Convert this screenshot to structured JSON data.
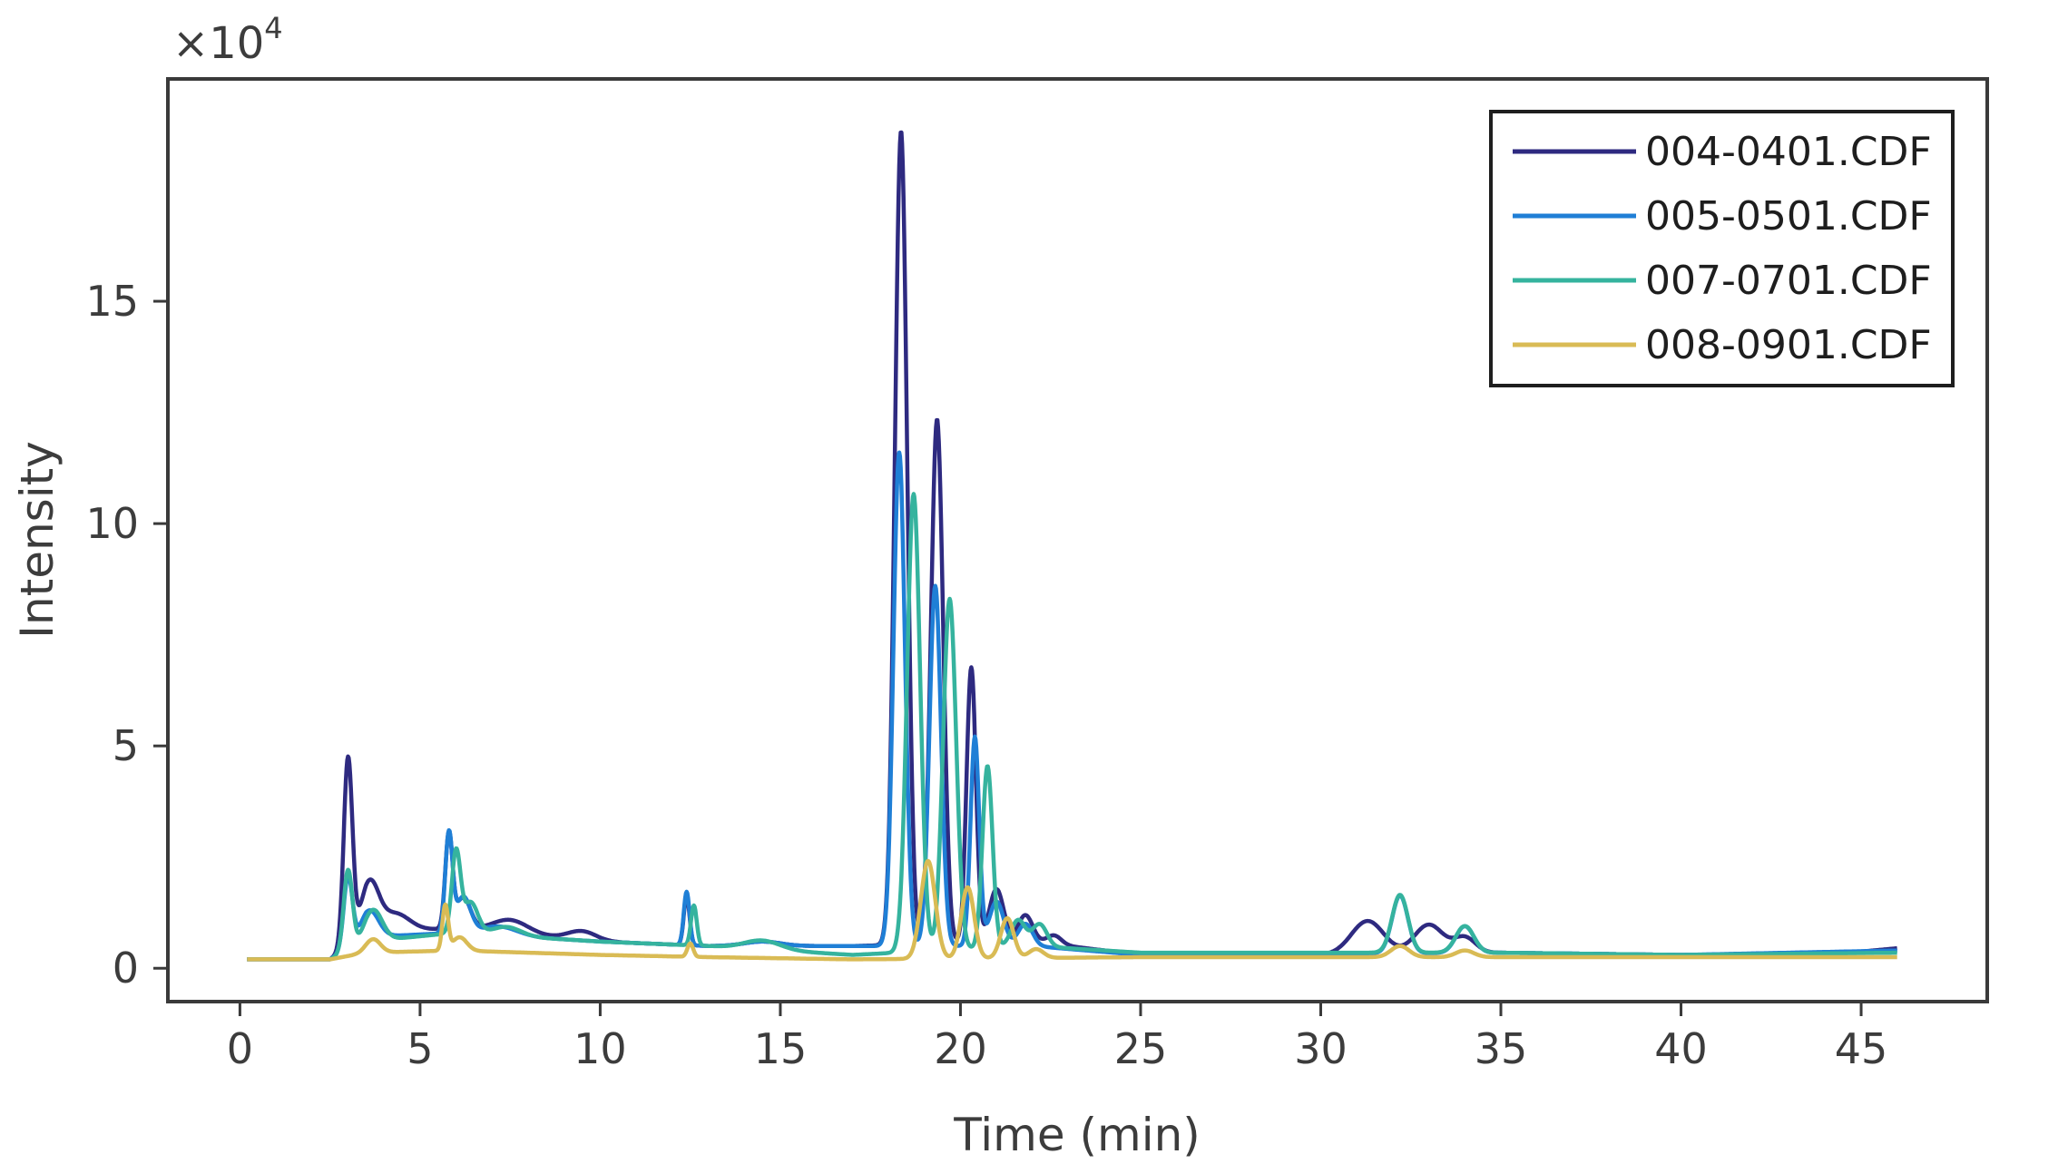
{
  "chart_data": {
    "type": "line",
    "title": "",
    "xlabel": "Time (min)",
    "ylabel": "Intensity",
    "y_multiplier_label": "×10",
    "y_multiplier_exponent": "4",
    "xlim": [
      -2,
      48.5
    ],
    "ylim": [
      -0.75,
      20
    ],
    "x_ticks": [
      0,
      5,
      10,
      15,
      20,
      25,
      30,
      35,
      40,
      45
    ],
    "x_tick_labels": [
      "0",
      "5",
      "10",
      "15",
      "20",
      "25",
      "30",
      "35",
      "40",
      "45"
    ],
    "y_ticks": [
      0,
      5,
      10,
      15
    ],
    "y_tick_labels": [
      "0",
      "5",
      "10",
      "15"
    ],
    "grid": false,
    "legend_position": "top-right",
    "series": [
      {
        "name": "004-0401.CDF",
        "color": "#2e2a80",
        "baseline": [
          [
            0.2,
            0.2
          ],
          [
            2.5,
            0.2
          ],
          [
            3.5,
            0.8
          ],
          [
            6,
            0.9
          ],
          [
            10,
            0.6
          ],
          [
            13,
            0.5
          ],
          [
            17,
            0.5
          ],
          [
            22,
            0.6
          ],
          [
            25,
            0.3
          ],
          [
            30,
            0.3
          ],
          [
            35,
            0.35
          ],
          [
            40,
            0.3
          ],
          [
            44,
            0.3
          ],
          [
            46,
            0.45
          ]
        ],
        "peaks": [
          [
            3.0,
            4.2,
            0.12
          ],
          [
            3.6,
            1.1,
            0.25
          ],
          [
            4.3,
            0.4,
            0.4
          ],
          [
            5.8,
            2.1,
            0.1
          ],
          [
            6.2,
            0.7,
            0.2
          ],
          [
            7.5,
            0.3,
            0.5
          ],
          [
            9.5,
            0.2,
            0.4
          ],
          [
            12.4,
            1.1,
            0.08
          ],
          [
            14.5,
            0.1,
            0.5
          ],
          [
            18.35,
            18.3,
            0.17
          ],
          [
            19.35,
            11.8,
            0.17
          ],
          [
            20.3,
            6.2,
            0.13
          ],
          [
            21.0,
            1.2,
            0.2
          ],
          [
            21.8,
            0.6,
            0.2
          ],
          [
            22.6,
            0.2,
            0.2
          ],
          [
            31.3,
            0.75,
            0.45
          ],
          [
            33.0,
            0.65,
            0.4
          ],
          [
            34.0,
            0.35,
            0.3
          ]
        ]
      },
      {
        "name": "005-0501.CDF",
        "color": "#1f7fd6",
        "baseline": [
          [
            0.2,
            0.2
          ],
          [
            2.5,
            0.2
          ],
          [
            3.5,
            0.7
          ],
          [
            6,
            0.8
          ],
          [
            10,
            0.6
          ],
          [
            13,
            0.5
          ],
          [
            17,
            0.5
          ],
          [
            22,
            0.5
          ],
          [
            25,
            0.3
          ],
          [
            35,
            0.35
          ],
          [
            40,
            0.3
          ],
          [
            46,
            0.4
          ]
        ],
        "peaks": [
          [
            3.0,
            1.6,
            0.12
          ],
          [
            3.6,
            0.6,
            0.25
          ],
          [
            5.8,
            2.2,
            0.1
          ],
          [
            6.2,
            0.8,
            0.2
          ],
          [
            7.2,
            0.2,
            0.5
          ],
          [
            12.4,
            1.2,
            0.08
          ],
          [
            14.5,
            0.1,
            0.5
          ],
          [
            18.3,
            11.1,
            0.16
          ],
          [
            19.3,
            8.1,
            0.16
          ],
          [
            20.4,
            4.7,
            0.12
          ],
          [
            21.0,
            1.0,
            0.2
          ],
          [
            21.8,
            0.5,
            0.2
          ],
          [
            32.2,
            1.3,
            0.22
          ],
          [
            34.0,
            0.6,
            0.25
          ]
        ]
      },
      {
        "name": "007-0701.CDF",
        "color": "#35b39e",
        "baseline": [
          [
            0.2,
            0.2
          ],
          [
            2.5,
            0.2
          ],
          [
            3.5,
            0.6
          ],
          [
            6,
            0.8
          ],
          [
            10,
            0.6
          ],
          [
            13,
            0.5
          ],
          [
            17,
            0.3
          ],
          [
            22,
            0.5
          ],
          [
            25,
            0.35
          ],
          [
            35,
            0.35
          ],
          [
            40,
            0.3
          ],
          [
            46,
            0.35
          ]
        ],
        "peaks": [
          [
            3.0,
            1.8,
            0.12
          ],
          [
            3.7,
            0.7,
            0.25
          ],
          [
            6.0,
            1.8,
            0.12
          ],
          [
            6.4,
            0.7,
            0.2
          ],
          [
            7.4,
            0.2,
            0.4
          ],
          [
            12.6,
            0.9,
            0.08
          ],
          [
            14.5,
            0.2,
            0.5
          ],
          [
            18.7,
            10.3,
            0.18
          ],
          [
            19.7,
            7.9,
            0.18
          ],
          [
            20.75,
            4.1,
            0.14
          ],
          [
            21.6,
            0.6,
            0.2
          ],
          [
            22.2,
            0.5,
            0.2
          ],
          [
            32.2,
            1.3,
            0.22
          ],
          [
            34.0,
            0.6,
            0.25
          ]
        ]
      },
      {
        "name": "008-0901.CDF",
        "color": "#d9bb55",
        "baseline": [
          [
            0.2,
            0.2
          ],
          [
            2.5,
            0.2
          ],
          [
            3.5,
            0.35
          ],
          [
            6,
            0.4
          ],
          [
            10,
            0.3
          ],
          [
            13,
            0.25
          ],
          [
            17,
            0.2
          ],
          [
            25,
            0.25
          ],
          [
            46,
            0.25
          ]
        ],
        "peaks": [
          [
            3.7,
            0.3,
            0.2
          ],
          [
            5.7,
            1.0,
            0.08
          ],
          [
            6.1,
            0.3,
            0.2
          ],
          [
            12.5,
            0.3,
            0.08
          ],
          [
            19.1,
            2.2,
            0.2
          ],
          [
            20.2,
            1.6,
            0.18
          ],
          [
            21.3,
            0.9,
            0.18
          ],
          [
            22.1,
            0.2,
            0.2
          ],
          [
            32.2,
            0.25,
            0.25
          ],
          [
            34.0,
            0.15,
            0.25
          ]
        ]
      }
    ]
  }
}
